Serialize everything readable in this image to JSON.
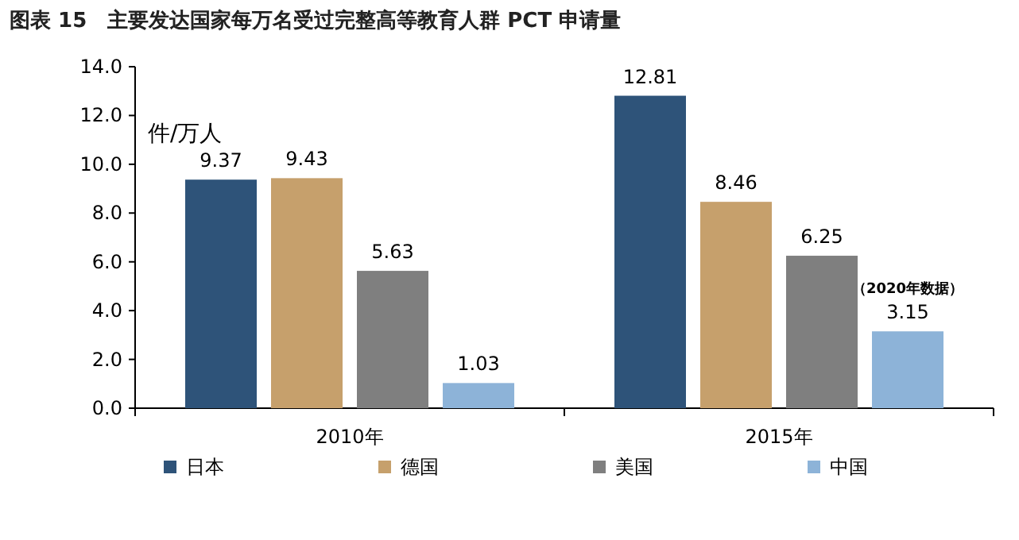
{
  "chart_data": {
    "type": "bar",
    "title": "图表 15　主要发达国家每万名受过完整高等教育人群 PCT 申请量",
    "ylabel": "件/万人",
    "categories": [
      "2010年",
      "2015年"
    ],
    "series": [
      {
        "name": "日本",
        "color": "#2e5379",
        "values": [
          9.37,
          12.81
        ]
      },
      {
        "name": "德国",
        "color": "#c6a06c",
        "values": [
          9.43,
          8.46
        ]
      },
      {
        "name": "美国",
        "color": "#7f7f7f",
        "values": [
          5.63,
          6.25
        ]
      },
      {
        "name": "中国",
        "color": "#8db3d8",
        "values": [
          1.03,
          3.15
        ]
      }
    ],
    "ylim": [
      0,
      14
    ],
    "yticks": [
      {
        "value": 0,
        "label": "0.0"
      },
      {
        "value": 2,
        "label": "2.0"
      },
      {
        "value": 4,
        "label": "4.0"
      },
      {
        "value": 6,
        "label": "6.0"
      },
      {
        "value": 8,
        "label": "8.0"
      },
      {
        "value": 10,
        "label": "10.0"
      },
      {
        "value": 12,
        "label": "12.0"
      },
      {
        "value": 14,
        "label": "14.0"
      }
    ],
    "data_labels": true,
    "annotations": [
      "（2020年数据）"
    ],
    "legend": "bottom",
    "grid": false
  }
}
